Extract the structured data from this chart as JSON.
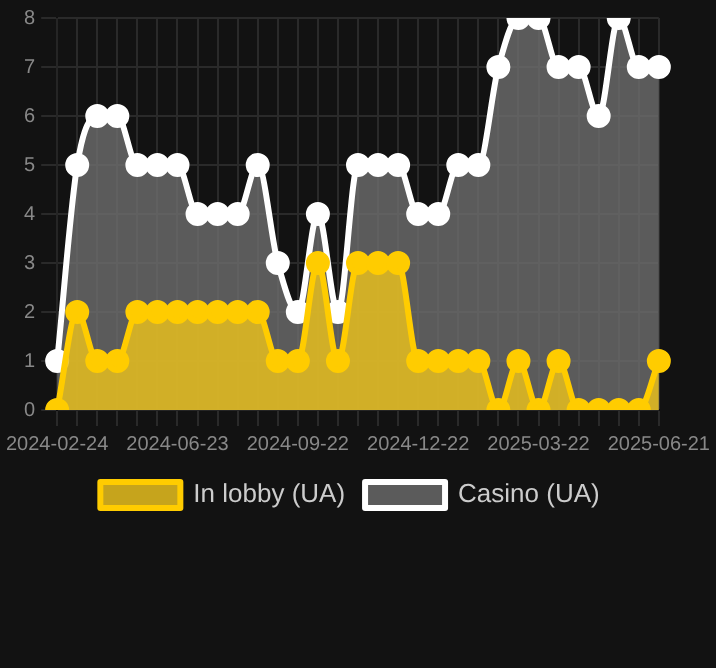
{
  "chart_data": {
    "type": "area",
    "categories": [
      "2024-02-24",
      null,
      null,
      null,
      null,
      null,
      "2024-06-23",
      null,
      null,
      null,
      null,
      null,
      "2024-09-22",
      null,
      null,
      null,
      null,
      null,
      "2024-12-22",
      null,
      null,
      null,
      null,
      null,
      "2025-03-22",
      null,
      null,
      null,
      null,
      null,
      "2025-06-21"
    ],
    "series": [
      {
        "name": "In lobby (UA)",
        "color": "#ffcc00",
        "values": [
          0,
          2,
          1,
          1,
          2,
          2,
          2,
          2,
          2,
          2,
          2,
          1,
          1,
          3,
          1,
          3,
          3,
          3,
          1,
          1,
          1,
          1,
          0,
          1,
          0,
          1,
          0,
          0,
          0,
          0,
          1
        ]
      },
      {
        "name": "Casino (UA)",
        "color": "#ffffff",
        "values": [
          1,
          5,
          6,
          6,
          5,
          5,
          5,
          4,
          4,
          4,
          5,
          3,
          2,
          4,
          2,
          5,
          5,
          5,
          4,
          4,
          5,
          5,
          7,
          8,
          8,
          7,
          7,
          6,
          8,
          7,
          7
        ]
      }
    ],
    "ylim": [
      0,
      8
    ],
    "yticks": [
      0,
      1,
      2,
      3,
      4,
      5,
      6,
      7,
      8
    ],
    "grid": true,
    "legend": "bottom",
    "marker": "circle"
  }
}
